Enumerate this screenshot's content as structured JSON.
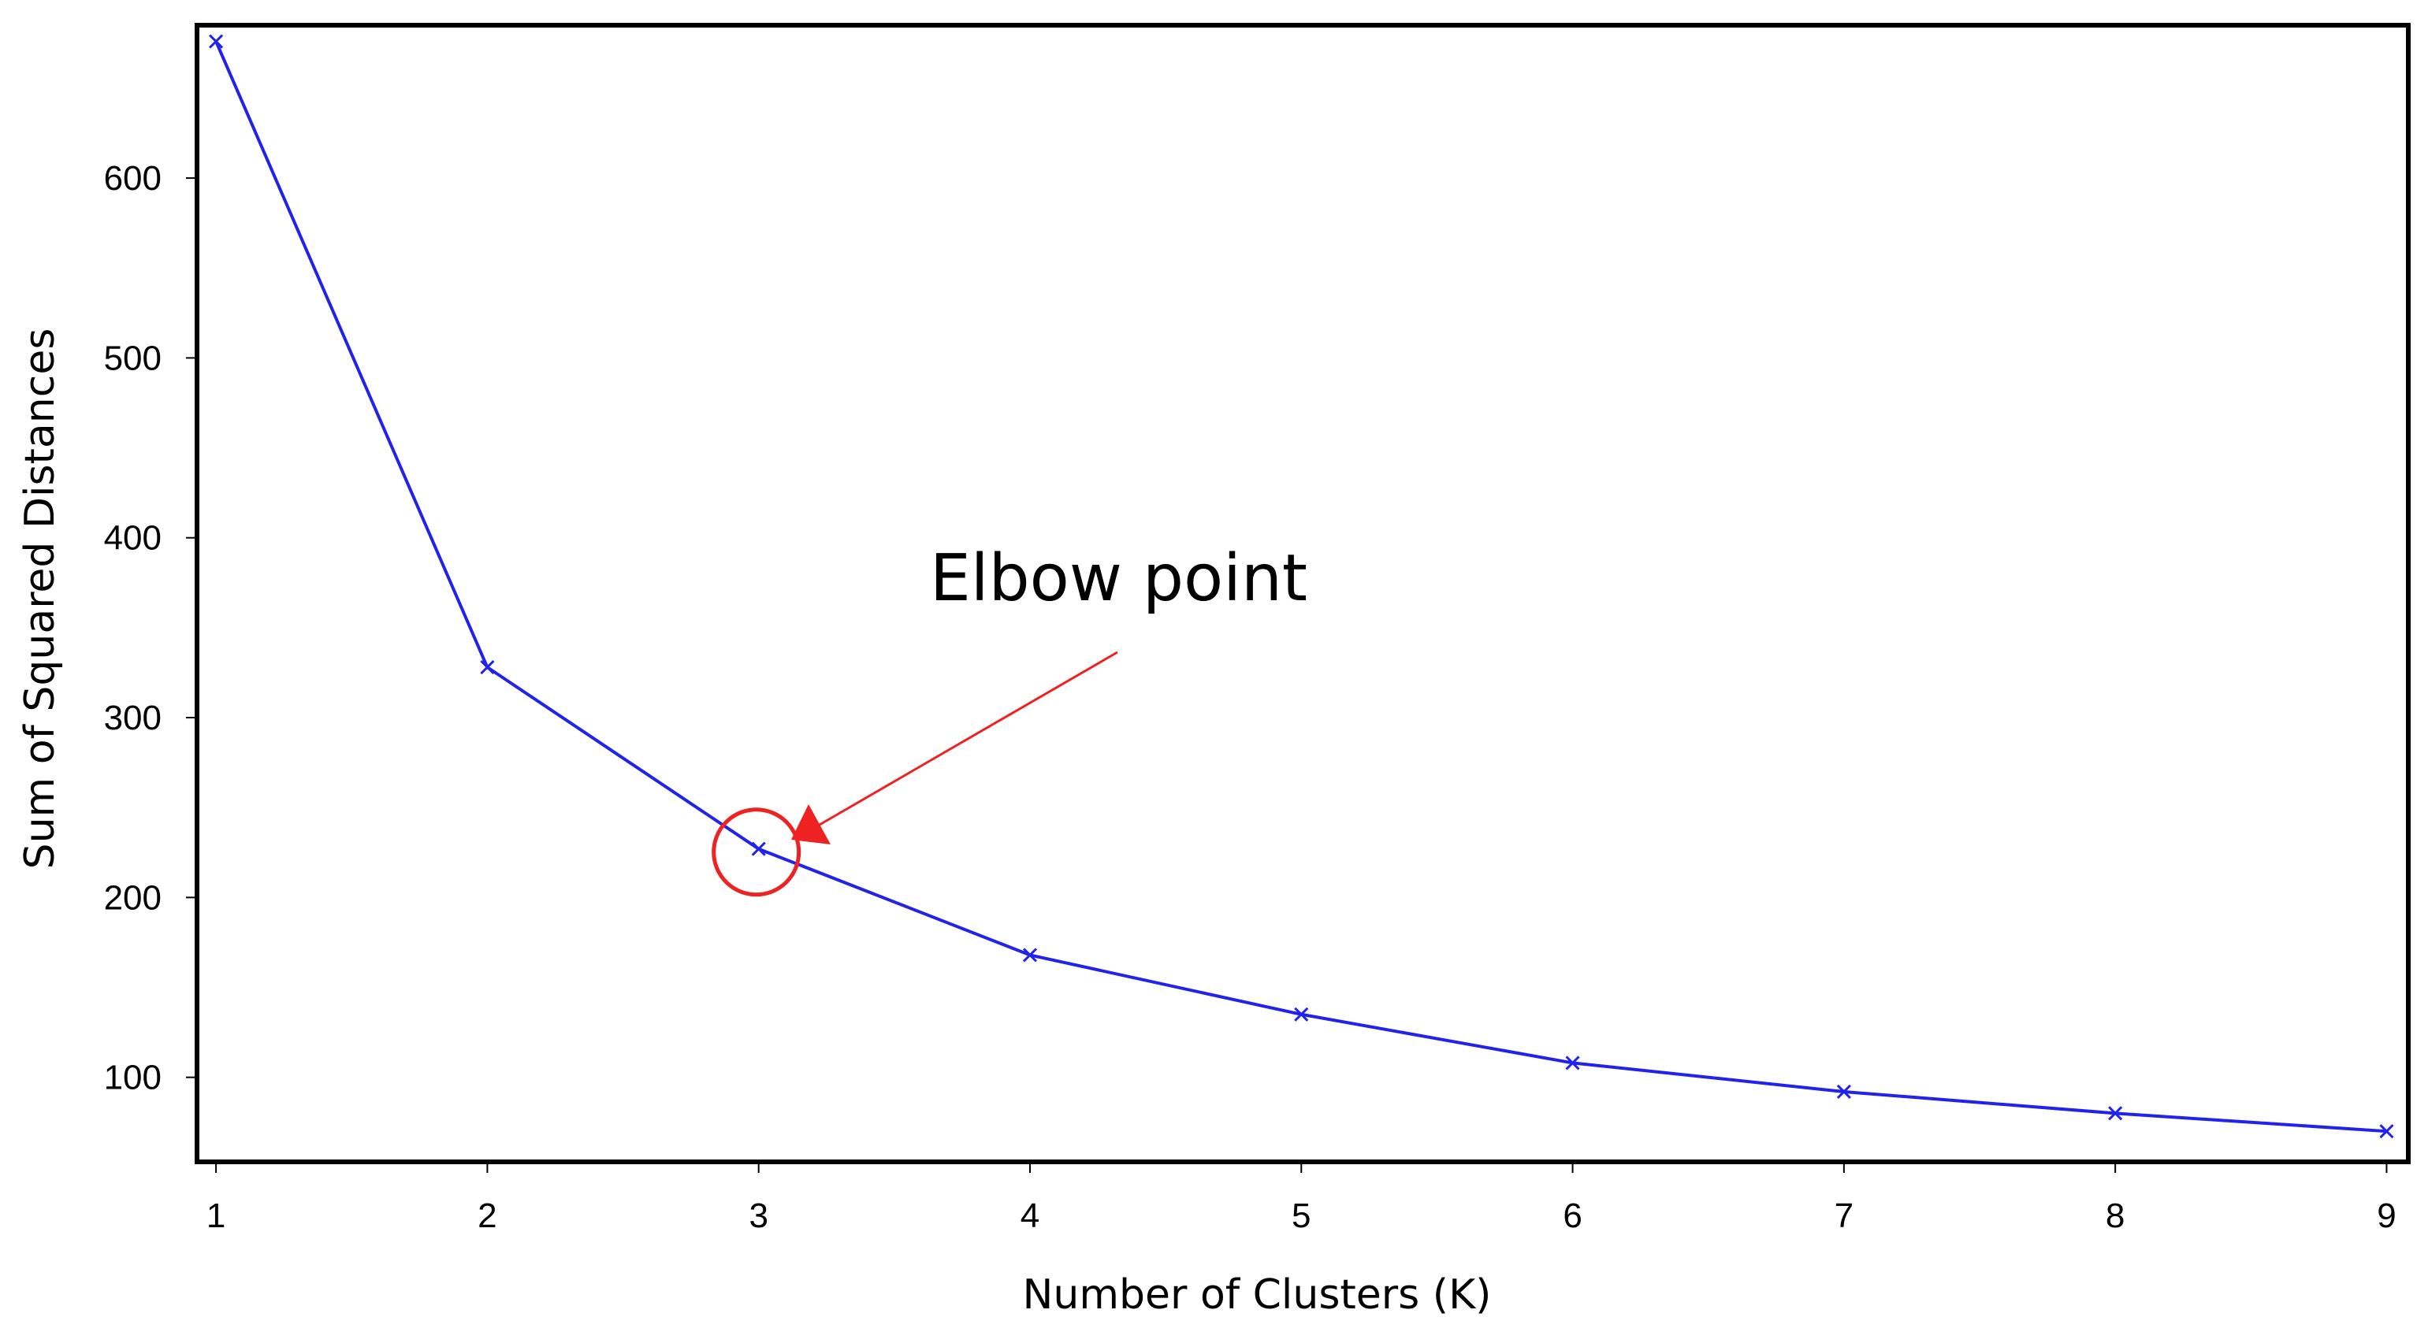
{
  "chart_data": {
    "type": "line",
    "title": "",
    "xlabel": "Number of Clusters (K)",
    "ylabel": "Sum of Squared Distances",
    "x": [
      1,
      2,
      3,
      4,
      5,
      6,
      7,
      8,
      9
    ],
    "series": [
      {
        "values": [
          676,
          328,
          227,
          168,
          135,
          108,
          92,
          80,
          70
        ],
        "color": "#2222ee",
        "marker": "x"
      }
    ],
    "xlim": [
      0.93,
      9.08
    ],
    "ylim": [
      53,
      685
    ],
    "xticks": [
      "1",
      "2",
      "3",
      "4",
      "5",
      "6",
      "7",
      "8",
      "9"
    ],
    "yticks": [
      "100",
      "200",
      "300",
      "400",
      "500",
      "600"
    ],
    "grid": false,
    "legend": "none",
    "annotation": {
      "text": "Elbow point",
      "target_x": 3,
      "target_y": 227,
      "color": "#ee2222"
    }
  }
}
